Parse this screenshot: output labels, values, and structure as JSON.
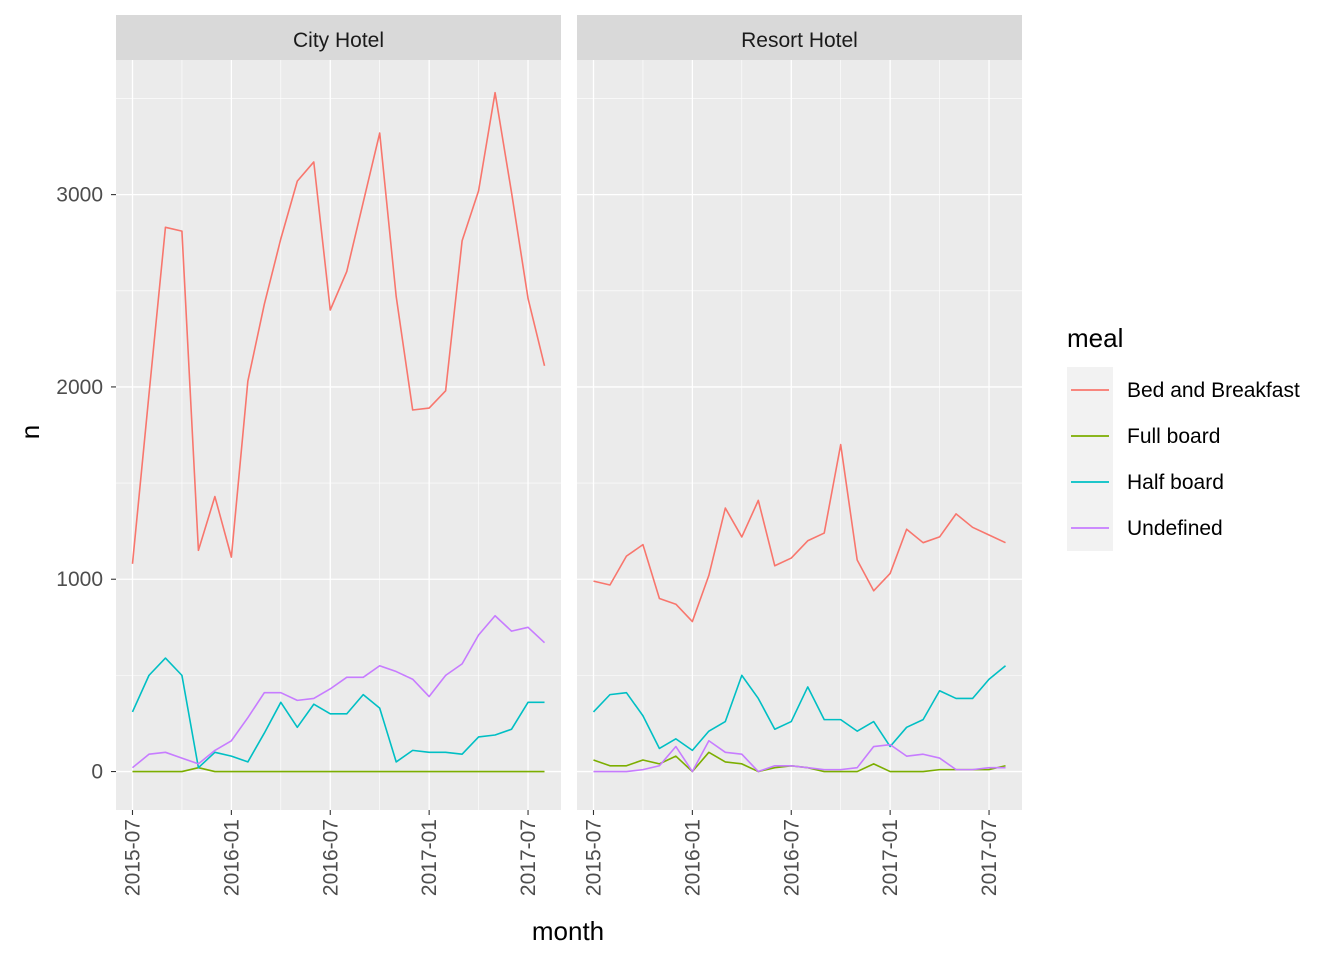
{
  "chart_data": {
    "type": "line",
    "xlabel": "month",
    "ylabel": "n",
    "x_ticks": [
      "2015-07",
      "2016-01",
      "2016-07",
      "2017-01",
      "2017-07"
    ],
    "y_ticks": [
      0,
      1000,
      2000,
      3000
    ],
    "ylim": [
      -200,
      3700
    ],
    "x_range": [
      "2015-06",
      "2017-09"
    ],
    "grid": true,
    "legend": {
      "title": "meal",
      "placement": "right",
      "entries": [
        "Bed and Breakfast",
        "Full board",
        "Half board",
        "Undefined"
      ]
    },
    "colors": {
      "Bed and Breakfast": "#F8766D",
      "Full board": "#7CAE00",
      "Half board": "#00BFC4",
      "Undefined": "#C77CFF",
      "panel_bg": "#EBEBEB",
      "strip_bg": "#D9D9D9",
      "grid": "#FFFFFF"
    },
    "x": [
      "2015-07",
      "2015-08",
      "2015-09",
      "2015-10",
      "2015-11",
      "2015-12",
      "2016-01",
      "2016-02",
      "2016-03",
      "2016-04",
      "2016-05",
      "2016-06",
      "2016-07",
      "2016-08",
      "2016-09",
      "2016-10",
      "2016-11",
      "2016-12",
      "2017-01",
      "2017-02",
      "2017-03",
      "2017-04",
      "2017-05",
      "2017-06",
      "2017-07",
      "2017-08"
    ],
    "panels": [
      {
        "title": "City Hotel",
        "series": [
          {
            "name": "Bed and Breakfast",
            "values": [
              1080,
              1960,
              2830,
              2810,
              1150,
              1430,
              1115,
              2030,
              2430,
              2770,
              3070,
              3170,
              2400,
              2600,
              2960,
              3320,
              2470,
              1880,
              1890,
              1980,
              2760,
              3020,
              3530,
              3010,
              2460,
              2110
            ]
          },
          {
            "name": "Full board",
            "values": [
              0,
              0,
              0,
              0,
              20,
              0,
              0,
              0,
              0,
              0,
              0,
              0,
              0,
              0,
              0,
              0,
              0,
              0,
              0,
              0,
              0,
              0,
              0,
              0,
              0,
              0
            ]
          },
          {
            "name": "Half board",
            "values": [
              310,
              500,
              590,
              500,
              20,
              100,
              80,
              50,
              200,
              360,
              230,
              350,
              300,
              300,
              400,
              330,
              50,
              110,
              100,
              100,
              90,
              180,
              190,
              220,
              360,
              360
            ]
          },
          {
            "name": "Undefined",
            "values": [
              20,
              90,
              100,
              70,
              40,
              110,
              160,
              280,
              410,
              410,
              370,
              380,
              430,
              490,
              490,
              550,
              520,
              480,
              390,
              500,
              560,
              710,
              810,
              730,
              750,
              670
            ]
          }
        ]
      },
      {
        "title": "Resort Hotel",
        "series": [
          {
            "name": "Bed and Breakfast",
            "values": [
              990,
              970,
              1120,
              1180,
              900,
              870,
              780,
              1020,
              1370,
              1220,
              1410,
              1070,
              1110,
              1200,
              1240,
              1700,
              1100,
              940,
              1030,
              1260,
              1190,
              1220,
              1340,
              1270,
              1230,
              1190
            ]
          },
          {
            "name": "Full board",
            "values": [
              60,
              30,
              30,
              60,
              40,
              80,
              0,
              100,
              50,
              40,
              0,
              20,
              30,
              20,
              0,
              0,
              0,
              40,
              0,
              0,
              0,
              10,
              10,
              10,
              10,
              30
            ]
          },
          {
            "name": "Half board",
            "values": [
              310,
              400,
              410,
              290,
              120,
              170,
              110,
              210,
              260,
              500,
              380,
              220,
              260,
              440,
              270,
              270,
              210,
              260,
              130,
              230,
              270,
              420,
              380,
              380,
              480,
              550
            ]
          },
          {
            "name": "Undefined",
            "values": [
              0,
              0,
              0,
              10,
              30,
              130,
              0,
              160,
              100,
              90,
              0,
              30,
              30,
              20,
              10,
              10,
              20,
              130,
              140,
              80,
              90,
              70,
              10,
              10,
              20,
              20
            ]
          }
        ]
      }
    ]
  }
}
